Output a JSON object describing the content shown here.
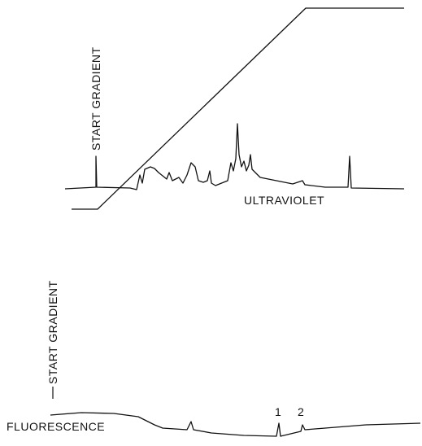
{
  "labels": {
    "top_start": "START GRADIENT",
    "top_trace": "ULTRAVIOLET",
    "bottom_start": "START GRADIENT",
    "bottom_trace": "FLUORESCENCE",
    "peak_1": "1",
    "peak_2": "2"
  }
}
